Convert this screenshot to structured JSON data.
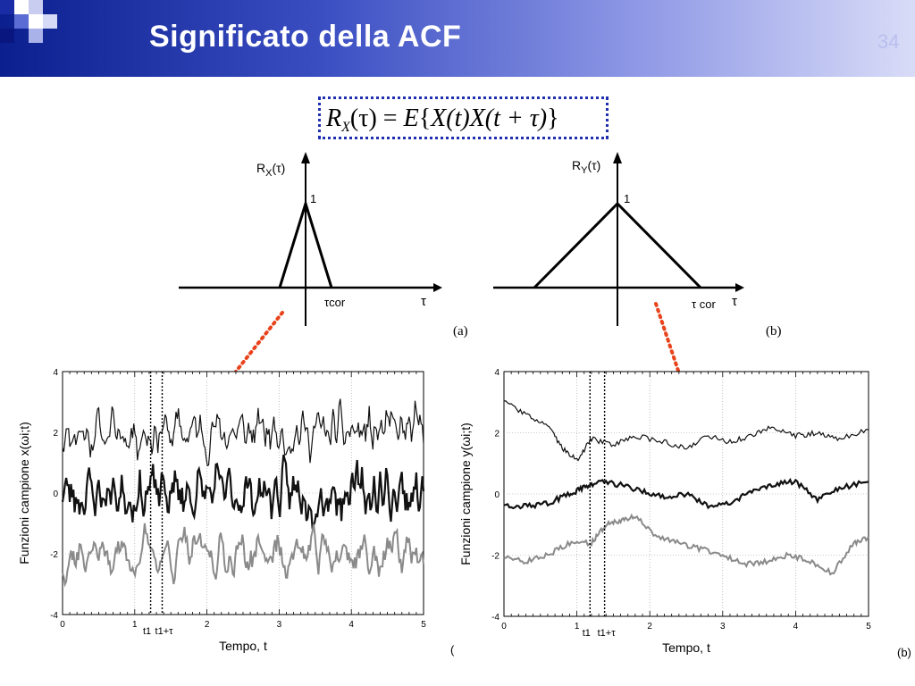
{
  "slide": {
    "title": "Significato della ACF",
    "slide_number": "34",
    "formula": {
      "R": "R",
      "R_sub": "X",
      "lhs_arg": "(τ) = ",
      "E": "E",
      "brace_open": "{",
      "body": "X(t)X(t + τ)",
      "brace_close": "}"
    }
  },
  "acf_a": {
    "ylabel_main": "R",
    "ylabel_sub": "X",
    "ylabel_arg": "(τ)",
    "peak_label": "1",
    "tcor_label": "τcor",
    "tau_label": "τ",
    "tag": "(a)"
  },
  "acf_b": {
    "ylabel_main": "R",
    "ylabel_sub": "Y",
    "ylabel_arg": "(τ)",
    "peak_label": "1",
    "tcor_label": "τ cor",
    "tau_label": "τ",
    "tag": "(b)"
  },
  "colors": {
    "arrow": "#e8431c",
    "trace_gray": "#8a8a8a",
    "trace_black": "#111111"
  },
  "chart_data": [
    {
      "type": "line",
      "name": "left_sample_functions",
      "ylabel": "Funzioni campione x(ωi;t)",
      "xlabel": "Tempo, t",
      "xlim": [
        0,
        5
      ],
      "ylim": [
        -4,
        4
      ],
      "xticks": [
        "0",
        "1",
        "2",
        "3",
        "4",
        "5"
      ],
      "yticks": [
        "4",
        "2",
        "0",
        "-2",
        "-4"
      ],
      "marker_labels": [
        "t1",
        "t1+τ"
      ],
      "markers_x": [
        1.22,
        1.38
      ],
      "grid": true,
      "series": [
        {
          "base": 2.0,
          "amp": 0.75,
          "smooth": 3,
          "seed": 11,
          "style": "thin-black"
        },
        {
          "base": 0.0,
          "amp": 0.85,
          "smooth": 3,
          "seed": 23,
          "style": "thick-black"
        },
        {
          "base": -2.0,
          "amp": 0.85,
          "smooth": 4,
          "seed": 37,
          "style": "gray"
        }
      ],
      "tag": "("
    },
    {
      "type": "line",
      "name": "right_sample_functions",
      "ylabel": "Funzioni campione y(ωi;t)",
      "xlabel": "Tempo, t",
      "xlim": [
        0,
        5
      ],
      "ylim": [
        -4,
        4
      ],
      "xticks": [
        "0",
        "1",
        "2",
        "3",
        "4",
        "5"
      ],
      "yticks": [
        "4",
        "2",
        "0",
        "-2",
        "-4"
      ],
      "marker_labels": [
        "t1",
        "t1+τ"
      ],
      "markers_x": [
        1.18,
        1.38
      ],
      "grid": true,
      "series": [
        {
          "points": [
            [
              0,
              3.0
            ],
            [
              0.3,
              2.6
            ],
            [
              0.6,
              2.2
            ],
            [
              0.8,
              1.5
            ],
            [
              1.0,
              1.1
            ],
            [
              1.2,
              1.8
            ],
            [
              1.5,
              1.6
            ],
            [
              1.8,
              1.9
            ],
            [
              2.2,
              1.7
            ],
            [
              2.5,
              1.5
            ],
            [
              2.8,
              1.9
            ],
            [
              3.1,
              1.7
            ],
            [
              3.4,
              1.9
            ],
            [
              3.7,
              2.2
            ],
            [
              4.0,
              1.9
            ],
            [
              4.3,
              2.0
            ],
            [
              4.6,
              1.8
            ],
            [
              5.0,
              2.1
            ]
          ],
          "style": "thin-black"
        },
        {
          "points": [
            [
              0,
              -0.4
            ],
            [
              0.3,
              -0.4
            ],
            [
              0.6,
              -0.3
            ],
            [
              0.9,
              0.0
            ],
            [
              1.1,
              0.2
            ],
            [
              1.3,
              0.4
            ],
            [
              1.6,
              0.3
            ],
            [
              1.9,
              0.1
            ],
            [
              2.2,
              -0.1
            ],
            [
              2.5,
              0.0
            ],
            [
              2.8,
              -0.4
            ],
            [
              3.1,
              -0.3
            ],
            [
              3.4,
              0.1
            ],
            [
              3.7,
              0.3
            ],
            [
              4.0,
              0.4
            ],
            [
              4.3,
              -0.2
            ],
            [
              4.6,
              0.2
            ],
            [
              5.0,
              0.4
            ]
          ],
          "style": "thick-black"
        },
        {
          "points": [
            [
              0,
              -2.1
            ],
            [
              0.3,
              -2.2
            ],
            [
              0.6,
              -2.0
            ],
            [
              0.9,
              -1.6
            ],
            [
              1.2,
              -1.6
            ],
            [
              1.4,
              -1.0
            ],
            [
              1.6,
              -0.9
            ],
            [
              1.8,
              -0.7
            ],
            [
              2.1,
              -1.4
            ],
            [
              2.4,
              -1.6
            ],
            [
              2.7,
              -1.8
            ],
            [
              3.0,
              -2.0
            ],
            [
              3.3,
              -2.3
            ],
            [
              3.6,
              -2.2
            ],
            [
              3.9,
              -2.0
            ],
            [
              4.2,
              -2.2
            ],
            [
              4.5,
              -2.6
            ],
            [
              4.8,
              -1.6
            ],
            [
              5.0,
              -1.4
            ]
          ],
          "style": "gray"
        }
      ],
      "tag": "(b)"
    }
  ]
}
